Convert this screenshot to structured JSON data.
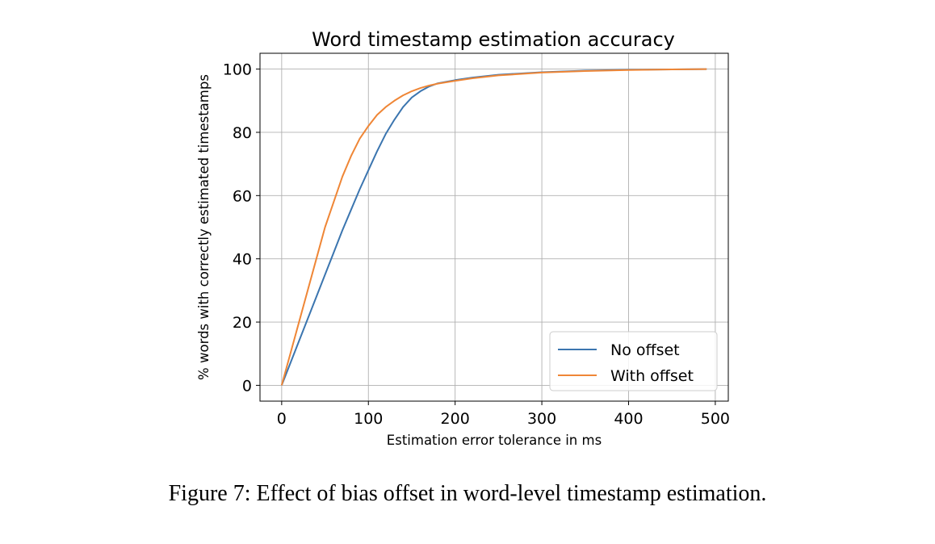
{
  "figure": {
    "caption": "Figure 7: Effect of bias offset in word-level timestamp estimation."
  },
  "chart_data": {
    "type": "line",
    "title": "Word timestamp estimation accuracy",
    "xlabel": "Estimation error tolerance in ms",
    "ylabel": "% words with correctly estimated timestamps",
    "xlim": [
      -25,
      515
    ],
    "ylim": [
      -5,
      105
    ],
    "xticks": [
      0,
      100,
      200,
      300,
      400,
      500
    ],
    "yticks": [
      0,
      20,
      40,
      60,
      80,
      100
    ],
    "xtick_labels": [
      "0",
      "100",
      "200",
      "300",
      "400",
      "500"
    ],
    "ytick_labels": [
      "0",
      "20",
      "40",
      "60",
      "80",
      "100"
    ],
    "grid": true,
    "legend_position": "lower-right",
    "series": [
      {
        "name": "No offset",
        "color": "#3b75af",
        "x": [
          0,
          10,
          20,
          30,
          40,
          50,
          60,
          70,
          80,
          90,
          100,
          110,
          120,
          130,
          140,
          150,
          160,
          170,
          180,
          200,
          220,
          250,
          300,
          350,
          400,
          450,
          490
        ],
        "y": [
          0,
          7,
          14,
          21,
          28,
          35,
          42,
          49,
          55.5,
          62,
          68,
          74,
          79.5,
          84,
          88,
          91,
          93,
          94.5,
          95.5,
          96.5,
          97.3,
          98.2,
          99.0,
          99.5,
          99.8,
          99.9,
          100
        ]
      },
      {
        "name": "With offset",
        "color": "#ef8636",
        "x": [
          0,
          10,
          20,
          30,
          40,
          50,
          60,
          70,
          80,
          90,
          100,
          110,
          120,
          130,
          140,
          150,
          160,
          170,
          180,
          200,
          220,
          250,
          300,
          350,
          400,
          450,
          490
        ],
        "y": [
          0,
          10,
          20,
          30,
          40,
          50,
          58,
          66,
          72.5,
          78,
          82,
          85.5,
          88,
          90,
          91.7,
          93,
          94,
          94.8,
          95.4,
          96.3,
          97.1,
          98.0,
          98.9,
          99.4,
          99.7,
          99.9,
          100
        ]
      }
    ]
  }
}
